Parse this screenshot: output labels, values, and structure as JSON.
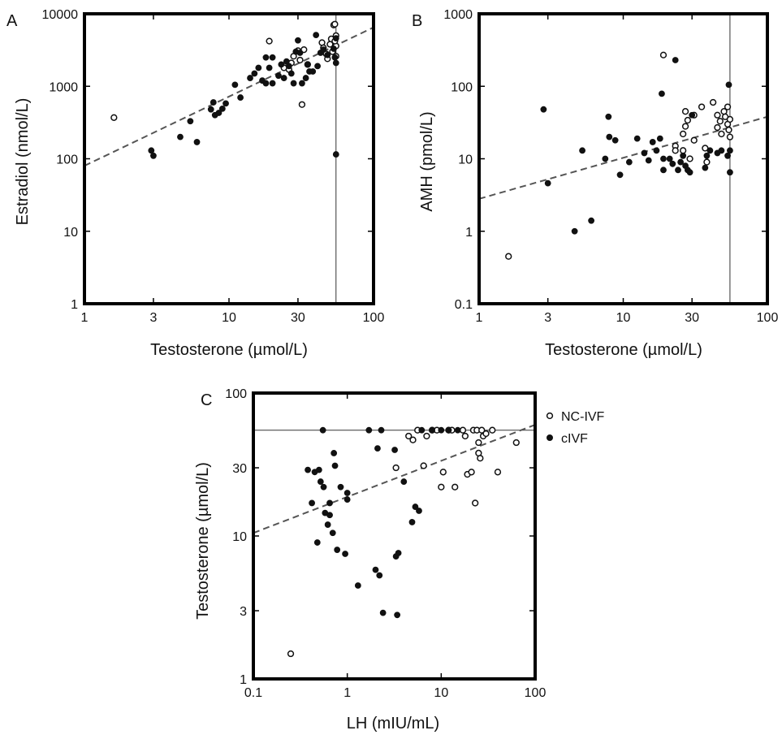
{
  "legend": {
    "open": "NC-IVF",
    "filled": "cIVF"
  },
  "colors": {
    "frame": "#000000",
    "filled_marker": "#111111",
    "open_marker_fill": "#ffffff",
    "fit_line": "#555555",
    "ref_line": "#333333"
  },
  "chart_data": [
    {
      "panel": "A",
      "type": "scatter",
      "xlabel": "Testosterone (µmol/L)",
      "ylabel": "Estradiol (nmol/L)",
      "xscale": "log",
      "yscale": "log",
      "xlim": [
        1,
        100
      ],
      "ylim": [
        1,
        10000
      ],
      "xticks": [
        1,
        3,
        10,
        30,
        100
      ],
      "xtick_labels": [
        "1",
        "3",
        "10",
        "30",
        "100"
      ],
      "yticks": [
        1,
        10,
        100,
        1000,
        10000
      ],
      "ytick_labels": [
        "1",
        "10",
        "100",
        "1000",
        "10000"
      ],
      "reference_line": {
        "orientation": "vertical",
        "value": 55
      },
      "fit_line": [
        [
          1,
          80
        ],
        [
          100,
          6500
        ]
      ],
      "series": [
        {
          "name": "NC-IVF",
          "marker": "open",
          "points": [
            [
              1.6,
              370
            ],
            [
              19,
              4200
            ],
            [
              24,
              1800
            ],
            [
              26,
              1700
            ],
            [
              27,
              2100
            ],
            [
              28,
              2600
            ],
            [
              30,
              3100
            ],
            [
              31,
              2300
            ],
            [
              32,
              560
            ],
            [
              33,
              3200
            ],
            [
              35,
              2000
            ],
            [
              44,
              4000
            ],
            [
              45,
              3400
            ],
            [
              47,
              2800
            ],
            [
              48,
              2400
            ],
            [
              50,
              3800
            ],
            [
              51,
              4500
            ],
            [
              52,
              3000
            ],
            [
              53,
              7000
            ],
            [
              54,
              7200
            ],
            [
              55,
              3600
            ],
            [
              55,
              5000
            ],
            [
              55,
              2600
            ],
            [
              54,
              4200
            ]
          ]
        },
        {
          "name": "cIVF",
          "marker": "filled",
          "points": [
            [
              2.9,
              130
            ],
            [
              3.0,
              110
            ],
            [
              4.6,
              200
            ],
            [
              5.4,
              330
            ],
            [
              6.0,
              170
            ],
            [
              7.5,
              480
            ],
            [
              7.8,
              600
            ],
            [
              8.0,
              400
            ],
            [
              8.5,
              430
            ],
            [
              9.0,
              490
            ],
            [
              9.5,
              580
            ],
            [
              11,
              1050
            ],
            [
              12,
              700
            ],
            [
              14,
              1300
            ],
            [
              15,
              1500
            ],
            [
              16,
              1800
            ],
            [
              17,
              1200
            ],
            [
              18,
              1100
            ],
            [
              18,
              2500
            ],
            [
              19,
              1800
            ],
            [
              20,
              2500
            ],
            [
              20,
              1100
            ],
            [
              22,
              1400
            ],
            [
              23,
              2000
            ],
            [
              24,
              1300
            ],
            [
              25,
              2200
            ],
            [
              26,
              1900
            ],
            [
              27,
              1500
            ],
            [
              28,
              1100
            ],
            [
              29,
              3000
            ],
            [
              30,
              4300
            ],
            [
              31,
              2900
            ],
            [
              32,
              1100
            ],
            [
              34,
              1300
            ],
            [
              35,
              2000
            ],
            [
              36,
              1600
            ],
            [
              38,
              1600
            ],
            [
              40,
              5100
            ],
            [
              41,
              1900
            ],
            [
              43,
              2900
            ],
            [
              45,
              3200
            ],
            [
              48,
              2700
            ],
            [
              53,
              3300
            ],
            [
              54,
              2500
            ],
            [
              55,
              4600
            ],
            [
              55,
              2100
            ],
            [
              55,
              115
            ]
          ]
        }
      ]
    },
    {
      "panel": "B",
      "type": "scatter",
      "xlabel": "Testosterone (µmol/L)",
      "ylabel": "AMH (pmol/L)",
      "xscale": "log",
      "yscale": "log",
      "xlim": [
        1,
        100
      ],
      "ylim": [
        0.1,
        1000
      ],
      "xticks": [
        1,
        3,
        10,
        30,
        100
      ],
      "xtick_labels": [
        "1",
        "3",
        "10",
        "30",
        "100"
      ],
      "yticks": [
        0.1,
        1,
        10,
        100,
        1000
      ],
      "ytick_labels": [
        "0.1",
        "1",
        "10",
        "100",
        "1000"
      ],
      "reference_line": {
        "orientation": "vertical",
        "value": 55
      },
      "fit_line": [
        [
          1,
          2.8
        ],
        [
          100,
          38
        ]
      ],
      "series": [
        {
          "name": "NC-IVF",
          "marker": "open",
          "points": [
            [
              1.6,
              0.45
            ],
            [
              19,
              270
            ],
            [
              23,
              15
            ],
            [
              23,
              13
            ],
            [
              26,
              22
            ],
            [
              26,
              13
            ],
            [
              27,
              45
            ],
            [
              27,
              28
            ],
            [
              28,
              34
            ],
            [
              29,
              10
            ],
            [
              31,
              40
            ],
            [
              31,
              18
            ],
            [
              35,
              52
            ],
            [
              37,
              14
            ],
            [
              38,
              9
            ],
            [
              42,
              60
            ],
            [
              45,
              40
            ],
            [
              45,
              27
            ],
            [
              47,
              33
            ],
            [
              48,
              22
            ],
            [
              50,
              45
            ],
            [
              51,
              38
            ],
            [
              53,
              52
            ],
            [
              53,
              30
            ],
            [
              54,
              25
            ],
            [
              55,
              35
            ],
            [
              55,
              20
            ]
          ]
        },
        {
          "name": "cIVF",
          "marker": "filled",
          "points": [
            [
              2.8,
              48
            ],
            [
              3.0,
              4.6
            ],
            [
              4.6,
              1.0
            ],
            [
              5.2,
              13
            ],
            [
              6.0,
              1.4
            ],
            [
              7.5,
              10
            ],
            [
              7.9,
              38
            ],
            [
              8.0,
              20
            ],
            [
              8.8,
              18
            ],
            [
              9.5,
              6.0
            ],
            [
              11,
              9.0
            ],
            [
              12.5,
              19
            ],
            [
              14,
              12
            ],
            [
              15,
              9.5
            ],
            [
              16,
              17
            ],
            [
              17,
              13
            ],
            [
              18,
              19
            ],
            [
              18.5,
              79
            ],
            [
              19,
              10
            ],
            [
              19,
              7.0
            ],
            [
              21,
              10
            ],
            [
              22,
              8.5
            ],
            [
              23,
              230
            ],
            [
              24,
              7.0
            ],
            [
              25,
              9.0
            ],
            [
              26,
              11
            ],
            [
              27,
              8.0
            ],
            [
              28,
              7.0
            ],
            [
              29,
              6.5
            ],
            [
              30,
              40
            ],
            [
              37,
              7.5
            ],
            [
              38,
              11
            ],
            [
              40,
              13
            ],
            [
              45,
              12
            ],
            [
              48,
              13
            ],
            [
              53,
              11
            ],
            [
              54,
              105
            ],
            [
              55,
              6.5
            ],
            [
              55,
              13
            ]
          ]
        }
      ]
    },
    {
      "panel": "C",
      "type": "scatter",
      "xlabel": "LH (mIU/mL)",
      "ylabel": "Testosterone (µmol/L)",
      "xscale": "log",
      "yscale": "log",
      "xlim": [
        0.1,
        100
      ],
      "ylim": [
        1,
        100
      ],
      "xticks": [
        0.1,
        1,
        10,
        100
      ],
      "xtick_labels": [
        "0.1",
        "1",
        "10",
        "100"
      ],
      "yticks": [
        1,
        3,
        10,
        30,
        100
      ],
      "ytick_labels": [
        "1",
        "3",
        "10",
        "30",
        "100"
      ],
      "reference_line": {
        "orientation": "horizontal",
        "value": 55
      },
      "fit_line": [
        [
          0.1,
          10.5
        ],
        [
          100,
          60
        ]
      ],
      "legend_position": "right",
      "series": [
        {
          "name": "NC-IVF",
          "marker": "open",
          "points": [
            [
              0.25,
              1.5
            ],
            [
              3.3,
              30
            ],
            [
              4.5,
              50
            ],
            [
              5.0,
              47
            ],
            [
              5.6,
              55
            ],
            [
              6.5,
              31
            ],
            [
              7.0,
              50
            ],
            [
              8.0,
              55
            ],
            [
              9.0,
              55
            ],
            [
              10,
              22
            ],
            [
              10.5,
              28
            ],
            [
              12,
              55
            ],
            [
              13,
              55
            ],
            [
              14,
              22
            ],
            [
              17,
              55
            ],
            [
              18,
              50
            ],
            [
              19,
              27
            ],
            [
              21,
              28
            ],
            [
              22,
              55
            ],
            [
              23,
              17
            ],
            [
              24,
              55
            ],
            [
              25,
              45
            ],
            [
              25,
              38
            ],
            [
              26,
              35
            ],
            [
              27,
              55
            ],
            [
              28,
              50
            ],
            [
              30,
              52
            ],
            [
              35,
              55
            ],
            [
              40,
              28
            ],
            [
              63,
              45
            ]
          ]
        },
        {
          "name": "cIVF",
          "marker": "filled",
          "points": [
            [
              0.38,
              29
            ],
            [
              0.42,
              17
            ],
            [
              0.45,
              28
            ],
            [
              0.48,
              9.0
            ],
            [
              0.5,
              29
            ],
            [
              0.52,
              24
            ],
            [
              0.55,
              55
            ],
            [
              0.56,
              22
            ],
            [
              0.58,
              14.5
            ],
            [
              0.62,
              12
            ],
            [
              0.65,
              17
            ],
            [
              0.65,
              14
            ],
            [
              0.7,
              10.5
            ],
            [
              0.72,
              38
            ],
            [
              0.74,
              31
            ],
            [
              0.78,
              8.0
            ],
            [
              0.85,
              22
            ],
            [
              0.95,
              7.5
            ],
            [
              1.0,
              20
            ],
            [
              1.0,
              18
            ],
            [
              1.3,
              4.5
            ],
            [
              1.7,
              55
            ],
            [
              2.0,
              5.8
            ],
            [
              2.1,
              41
            ],
            [
              2.2,
              5.3
            ],
            [
              2.3,
              55
            ],
            [
              2.4,
              2.9
            ],
            [
              3.2,
              40
            ],
            [
              3.3,
              7.2
            ],
            [
              3.4,
              2.8
            ],
            [
              3.5,
              7.6
            ],
            [
              4.0,
              24
            ],
            [
              4.9,
              12.5
            ],
            [
              5.3,
              16
            ],
            [
              5.8,
              15
            ],
            [
              6.2,
              55
            ],
            [
              8.0,
              55
            ],
            [
              10,
              55
            ],
            [
              12,
              55
            ],
            [
              15,
              55
            ]
          ]
        }
      ]
    }
  ]
}
